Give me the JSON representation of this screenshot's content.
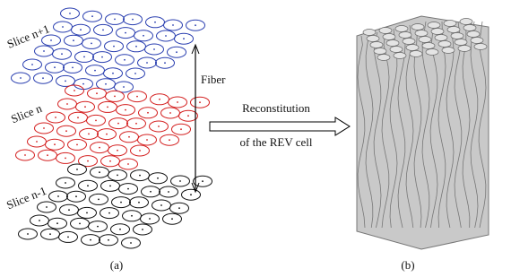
{
  "panel_a": {
    "slices": [
      "Slice n+1",
      "Slice n",
      "Slice n-1"
    ],
    "fiber_label": "Fiber",
    "caption": "(a)"
  },
  "arrow": {
    "line1": "Reconstitution",
    "line2": "of the REV cell"
  },
  "panel_b": {
    "caption": "(b)"
  }
}
